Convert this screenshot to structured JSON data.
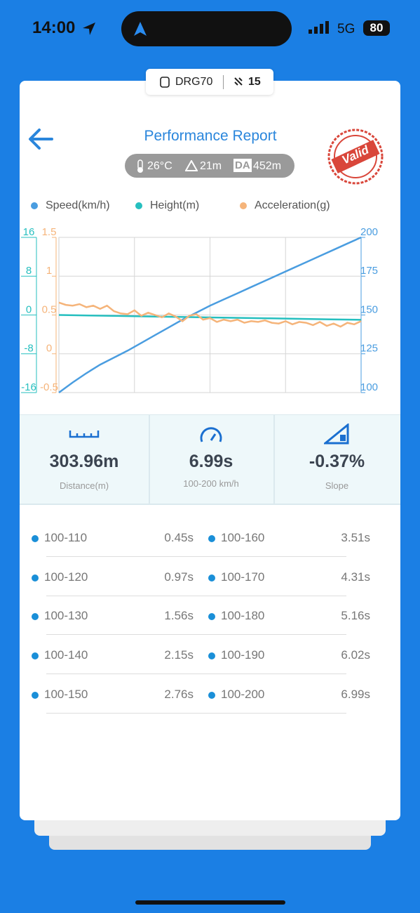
{
  "status_bar": {
    "time": "14:00",
    "network": "5G",
    "battery": "80"
  },
  "device": {
    "name": "DRG70",
    "satellites": "15"
  },
  "header": {
    "title": "Performance Report",
    "stamp": "Valid"
  },
  "conditions": {
    "temperature": "26°C",
    "altitude": "21m",
    "da_label": "DA",
    "density_altitude": "452m"
  },
  "chart_data": {
    "type": "line",
    "series": [
      {
        "name": "Speed(km/h)",
        "color": "#4a9de0",
        "axis": "y2",
        "values": [
          100,
          106.5,
          112.5,
          118,
          122.5,
          127,
          132,
          137,
          142,
          147,
          151.5,
          156,
          160,
          164,
          168,
          172,
          176,
          180,
          184,
          188,
          192,
          196,
          200
        ]
      },
      {
        "name": "Height(m)",
        "color": "#26bfbf",
        "axis": "y",
        "values": [
          0,
          -0.1,
          -0.2,
          -0.3,
          -0.4,
          -0.5,
          -0.6,
          -0.7,
          -0.8,
          -0.9,
          -1
        ]
      },
      {
        "name": "Acceleration(g)",
        "color": "#f5b47a",
        "axis": "y3",
        "values": [
          0.66,
          0.63,
          0.62,
          0.64,
          0.6,
          0.62,
          0.58,
          0.62,
          0.55,
          0.52,
          0.51,
          0.56,
          0.49,
          0.53,
          0.5,
          0.47,
          0.52,
          0.48,
          0.42,
          0.49,
          0.51,
          0.44,
          0.46,
          0.41,
          0.44,
          0.42,
          0.44,
          0.4,
          0.42,
          0.41,
          0.43,
          0.4,
          0.39,
          0.42,
          0.38,
          0.41,
          0.4,
          0.37,
          0.41,
          0.36,
          0.39,
          0.35,
          0.4,
          0.38,
          0.42
        ]
      }
    ],
    "ylim": [
      -16,
      16
    ],
    "yticks": [
      -16,
      -8,
      0,
      8,
      16
    ],
    "y3lim": [
      -0.5,
      1.5
    ],
    "y3ticks": [
      -0.5,
      0,
      0.5,
      1,
      1.5
    ],
    "y2lim": [
      100,
      200
    ],
    "y2ticks": [
      100,
      125,
      150,
      175,
      200
    ],
    "grid": true
  },
  "stats": [
    {
      "value": "303.96m",
      "label": "Distance(m)"
    },
    {
      "value": "6.99s",
      "label": "100-200 km/h"
    },
    {
      "value": "-0.37%",
      "label": "Slope"
    }
  ],
  "splits": [
    {
      "range": "100-110",
      "time": "0.45s"
    },
    {
      "range": "100-160",
      "time": "3.51s"
    },
    {
      "range": "100-120",
      "time": "0.97s"
    },
    {
      "range": "100-170",
      "time": "4.31s"
    },
    {
      "range": "100-130",
      "time": "1.56s"
    },
    {
      "range": "100-180",
      "time": "5.16s"
    },
    {
      "range": "100-140",
      "time": "2.15s"
    },
    {
      "range": "100-190",
      "time": "6.02s"
    },
    {
      "range": "100-150",
      "time": "2.76s"
    },
    {
      "range": "100-200",
      "time": "6.99s"
    }
  ]
}
